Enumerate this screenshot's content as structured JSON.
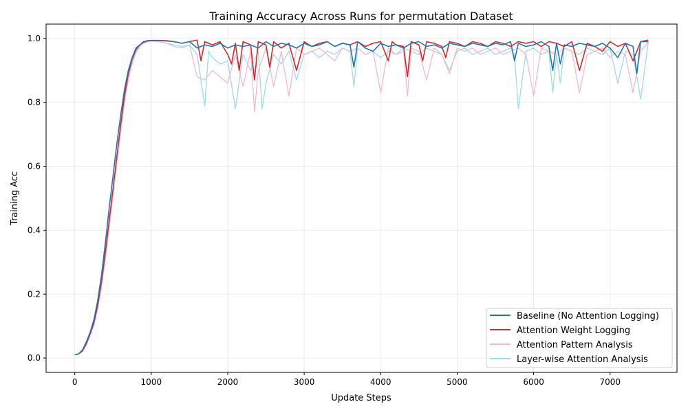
{
  "chart_data": {
    "type": "line",
    "title": "Training Accuracy Across Runs for permutation Dataset",
    "xlabel": "Update Steps",
    "ylabel": "Training Acc",
    "xlim": [
      -375,
      7875
    ],
    "ylim": [
      -0.045,
      1.045
    ],
    "xticks": [
      0,
      1000,
      2000,
      3000,
      4000,
      5000,
      6000,
      7000
    ],
    "yticks": [
      0.0,
      0.2,
      0.4,
      0.6,
      0.8,
      1.0
    ],
    "grid": true,
    "legend_position": "lower-right",
    "colors": {
      "baseline": "#1f77b4",
      "weight_logging": "#d62728",
      "pattern_analysis": "#f7b6d2",
      "layerwise": "#9edae5"
    },
    "series": [
      {
        "name": "Baseline (No Attention Logging)",
        "color": "#1f77b4",
        "x": [
          0,
          50,
          100,
          150,
          200,
          250,
          300,
          350,
          400,
          450,
          500,
          550,
          600,
          650,
          700,
          750,
          800,
          850,
          900,
          950,
          1000,
          1100,
          1200,
          1300,
          1400,
          1500,
          1600,
          1700,
          1800,
          1900,
          2000,
          2100,
          2200,
          2300,
          2400,
          2500,
          2600,
          2700,
          2800,
          2900,
          3000,
          3100,
          3200,
          3300,
          3400,
          3500,
          3600,
          3650,
          3700,
          3800,
          3900,
          4000,
          4100,
          4200,
          4300,
          4400,
          4500,
          4600,
          4700,
          4800,
          4900,
          5000,
          5100,
          5200,
          5300,
          5400,
          5500,
          5600,
          5700,
          5750,
          5800,
          5900,
          6000,
          6100,
          6200,
          6250,
          6300,
          6350,
          6400,
          6500,
          6600,
          6700,
          6800,
          6900,
          7000,
          7100,
          7200,
          7300,
          7350,
          7400,
          7500
        ],
        "y": [
          0.01,
          0.013,
          0.025,
          0.05,
          0.08,
          0.12,
          0.18,
          0.26,
          0.36,
          0.47,
          0.57,
          0.67,
          0.76,
          0.84,
          0.9,
          0.94,
          0.97,
          0.98,
          0.988,
          0.992,
          0.993,
          0.993,
          0.992,
          0.99,
          0.985,
          0.99,
          0.97,
          0.98,
          0.975,
          0.985,
          0.97,
          0.98,
          0.975,
          0.98,
          0.97,
          0.99,
          0.975,
          0.985,
          0.98,
          0.97,
          0.985,
          0.975,
          0.98,
          0.99,
          0.975,
          0.985,
          0.98,
          0.91,
          0.99,
          0.97,
          0.96,
          0.985,
          0.975,
          0.98,
          0.97,
          0.985,
          0.99,
          0.975,
          0.98,
          0.97,
          0.985,
          0.98,
          0.975,
          0.985,
          0.98,
          0.975,
          0.985,
          0.98,
          0.99,
          0.93,
          0.985,
          0.975,
          0.98,
          0.99,
          0.975,
          0.9,
          0.985,
          0.92,
          0.98,
          0.975,
          0.985,
          0.98,
          0.975,
          0.985,
          0.97,
          0.94,
          0.985,
          0.975,
          0.89,
          0.99,
          0.99
        ]
      },
      {
        "name": "Attention Weight Logging",
        "color": "#d62728",
        "x": [
          0,
          50,
          100,
          150,
          200,
          250,
          300,
          350,
          400,
          450,
          500,
          550,
          600,
          650,
          700,
          750,
          800,
          850,
          900,
          950,
          1000,
          1100,
          1200,
          1300,
          1400,
          1500,
          1600,
          1650,
          1700,
          1800,
          1900,
          2000,
          2050,
          2100,
          2150,
          2200,
          2300,
          2350,
          2400,
          2500,
          2550,
          2600,
          2700,
          2800,
          2900,
          3000,
          3100,
          3200,
          3300,
          3400,
          3500,
          3600,
          3700,
          3800,
          3900,
          4000,
          4100,
          4150,
          4200,
          4300,
          4350,
          4400,
          4500,
          4550,
          4600,
          4700,
          4800,
          4850,
          4900,
          5000,
          5100,
          5200,
          5300,
          5400,
          5500,
          5600,
          5700,
          5800,
          5900,
          6000,
          6100,
          6200,
          6300,
          6400,
          6500,
          6600,
          6700,
          6800,
          6900,
          7000,
          7100,
          7200,
          7300,
          7400,
          7500
        ],
        "y": [
          0.01,
          0.013,
          0.022,
          0.045,
          0.075,
          0.11,
          0.165,
          0.24,
          0.33,
          0.43,
          0.53,
          0.63,
          0.73,
          0.82,
          0.89,
          0.935,
          0.965,
          0.98,
          0.99,
          0.993,
          0.994,
          0.994,
          0.993,
          0.99,
          0.985,
          0.99,
          0.995,
          0.93,
          0.99,
          0.98,
          0.99,
          0.95,
          0.92,
          0.985,
          0.9,
          0.99,
          0.98,
          0.87,
          0.99,
          0.98,
          0.91,
          0.99,
          0.97,
          0.985,
          0.9,
          0.99,
          0.975,
          0.985,
          0.99,
          0.975,
          0.985,
          0.98,
          0.99,
          0.975,
          0.985,
          0.99,
          0.93,
          0.99,
          0.98,
          0.975,
          0.88,
          0.99,
          0.98,
          0.93,
          0.99,
          0.985,
          0.975,
          0.94,
          0.99,
          0.985,
          0.975,
          0.99,
          0.985,
          0.975,
          0.99,
          0.985,
          0.975,
          0.99,
          0.985,
          0.99,
          0.975,
          0.99,
          0.985,
          0.975,
          0.99,
          0.9,
          0.985,
          0.975,
          0.96,
          0.99,
          0.975,
          0.985,
          0.93,
          0.99,
          0.995
        ]
      },
      {
        "name": "Attention Pattern Analysis",
        "color": "#f7b6d2",
        "x": [
          0,
          50,
          100,
          150,
          200,
          250,
          300,
          350,
          400,
          450,
          500,
          550,
          600,
          650,
          700,
          750,
          800,
          850,
          900,
          950,
          1000,
          1100,
          1200,
          1300,
          1400,
          1500,
          1600,
          1700,
          1800,
          1900,
          2000,
          2100,
          2200,
          2300,
          2350,
          2400,
          2500,
          2600,
          2700,
          2800,
          2900,
          3000,
          3100,
          3200,
          3300,
          3400,
          3500,
          3600,
          3700,
          3800,
          3900,
          4000,
          4100,
          4200,
          4300,
          4350,
          4400,
          4500,
          4600,
          4700,
          4800,
          4900,
          5000,
          5100,
          5200,
          5300,
          5400,
          5500,
          5600,
          5700,
          5800,
          5900,
          6000,
          6100,
          6200,
          6300,
          6400,
          6500,
          6600,
          6700,
          6800,
          6900,
          7000,
          7100,
          7200,
          7300,
          7400,
          7500
        ],
        "y": [
          0.01,
          0.012,
          0.02,
          0.04,
          0.07,
          0.105,
          0.155,
          0.225,
          0.31,
          0.41,
          0.51,
          0.61,
          0.71,
          0.8,
          0.87,
          0.92,
          0.955,
          0.975,
          0.985,
          0.99,
          0.992,
          0.99,
          0.985,
          0.975,
          0.97,
          0.98,
          0.88,
          0.87,
          0.9,
          0.88,
          0.86,
          0.95,
          0.85,
          0.96,
          0.77,
          0.9,
          0.97,
          0.85,
          0.96,
          0.82,
          0.97,
          0.95,
          0.96,
          0.97,
          0.95,
          0.93,
          0.97,
          0.96,
          0.97,
          0.95,
          0.96,
          0.83,
          0.97,
          0.95,
          0.96,
          0.82,
          0.97,
          0.96,
          0.87,
          0.97,
          0.95,
          0.89,
          0.97,
          0.96,
          0.97,
          0.95,
          0.96,
          0.97,
          0.95,
          0.96,
          0.97,
          0.95,
          0.82,
          0.97,
          0.96,
          0.95,
          0.97,
          0.96,
          0.83,
          0.95,
          0.96,
          0.97,
          0.94,
          0.96,
          0.95,
          0.83,
          0.96,
          0.99
        ]
      },
      {
        "name": "Layer-wise Attention Analysis",
        "color": "#9edae5",
        "x": [
          0,
          50,
          100,
          150,
          200,
          250,
          300,
          350,
          400,
          450,
          500,
          550,
          600,
          650,
          700,
          750,
          800,
          850,
          900,
          950,
          1000,
          1100,
          1200,
          1300,
          1400,
          1500,
          1600,
          1700,
          1750,
          1800,
          1900,
          2000,
          2100,
          2200,
          2300,
          2400,
          2450,
          2500,
          2600,
          2700,
          2800,
          2900,
          3000,
          3100,
          3200,
          3300,
          3400,
          3500,
          3600,
          3650,
          3700,
          3800,
          3900,
          4000,
          4100,
          4200,
          4300,
          4400,
          4500,
          4600,
          4700,
          4800,
          4900,
          5000,
          5100,
          5200,
          5300,
          5400,
          5500,
          5600,
          5700,
          5750,
          5800,
          5900,
          6000,
          6100,
          6200,
          6250,
          6300,
          6350,
          6400,
          6500,
          6600,
          6700,
          6800,
          6900,
          7000,
          7100,
          7200,
          7300,
          7400,
          7500
        ],
        "y": [
          0.01,
          0.012,
          0.02,
          0.042,
          0.072,
          0.108,
          0.16,
          0.23,
          0.32,
          0.42,
          0.52,
          0.62,
          0.72,
          0.81,
          0.88,
          0.925,
          0.96,
          0.975,
          0.985,
          0.99,
          0.992,
          0.99,
          0.985,
          0.98,
          0.975,
          0.98,
          0.95,
          0.79,
          0.96,
          0.94,
          0.92,
          0.93,
          0.78,
          0.95,
          0.9,
          0.96,
          0.78,
          0.86,
          0.95,
          0.92,
          0.96,
          0.87,
          0.95,
          0.96,
          0.94,
          0.96,
          0.95,
          0.97,
          0.96,
          0.85,
          0.97,
          0.95,
          0.96,
          0.94,
          0.96,
          0.95,
          0.97,
          0.96,
          0.95,
          0.97,
          0.96,
          0.95,
          0.9,
          0.96,
          0.97,
          0.95,
          0.96,
          0.97,
          0.95,
          0.96,
          0.97,
          0.95,
          0.78,
          0.96,
          0.97,
          0.95,
          0.96,
          0.83,
          0.95,
          0.86,
          0.97,
          0.96,
          0.95,
          0.97,
          0.96,
          0.95,
          0.97,
          0.86,
          0.96,
          0.95,
          0.81,
          0.99
        ]
      }
    ]
  }
}
